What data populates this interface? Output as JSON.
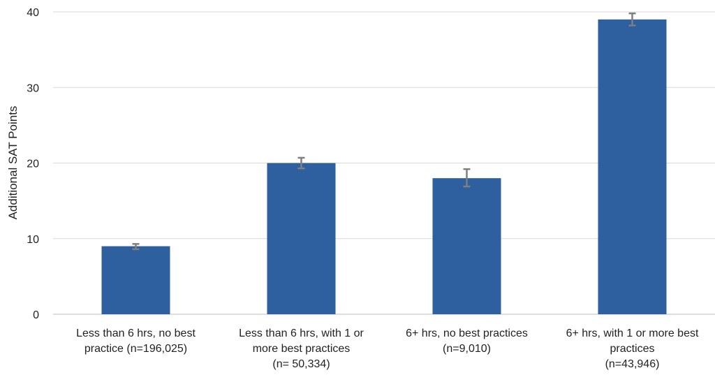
{
  "chart_data": {
    "type": "bar",
    "title": "",
    "xlabel": "",
    "ylabel": "Additional SAT Points",
    "ylim": [
      0,
      40
    ],
    "yticks": [
      0,
      10,
      20,
      30,
      40
    ],
    "grid": true,
    "categories": [
      [
        "Less than 6 hrs, no best",
        "practice (n=196,025)"
      ],
      [
        "Less than 6 hrs, with 1 or",
        "more best practices",
        "(n= 50,334)"
      ],
      [
        "6+ hrs, no best practices",
        "(n=9,010)"
      ],
      [
        "6+ hrs, with 1 or more best",
        "practices",
        "(n=43,946)"
      ]
    ],
    "series": [
      {
        "values": [
          9,
          20,
          18,
          39
        ],
        "error_low": [
          8.6,
          19.3,
          16.9,
          38.2
        ],
        "error_high": [
          9.3,
          20.7,
          19.2,
          39.8
        ]
      }
    ],
    "colors": {
      "bar": "#2e5f9f",
      "error_bar": "#7f7f7f",
      "grid": "#d9d9d9",
      "axis": "#bfbfbf"
    }
  }
}
